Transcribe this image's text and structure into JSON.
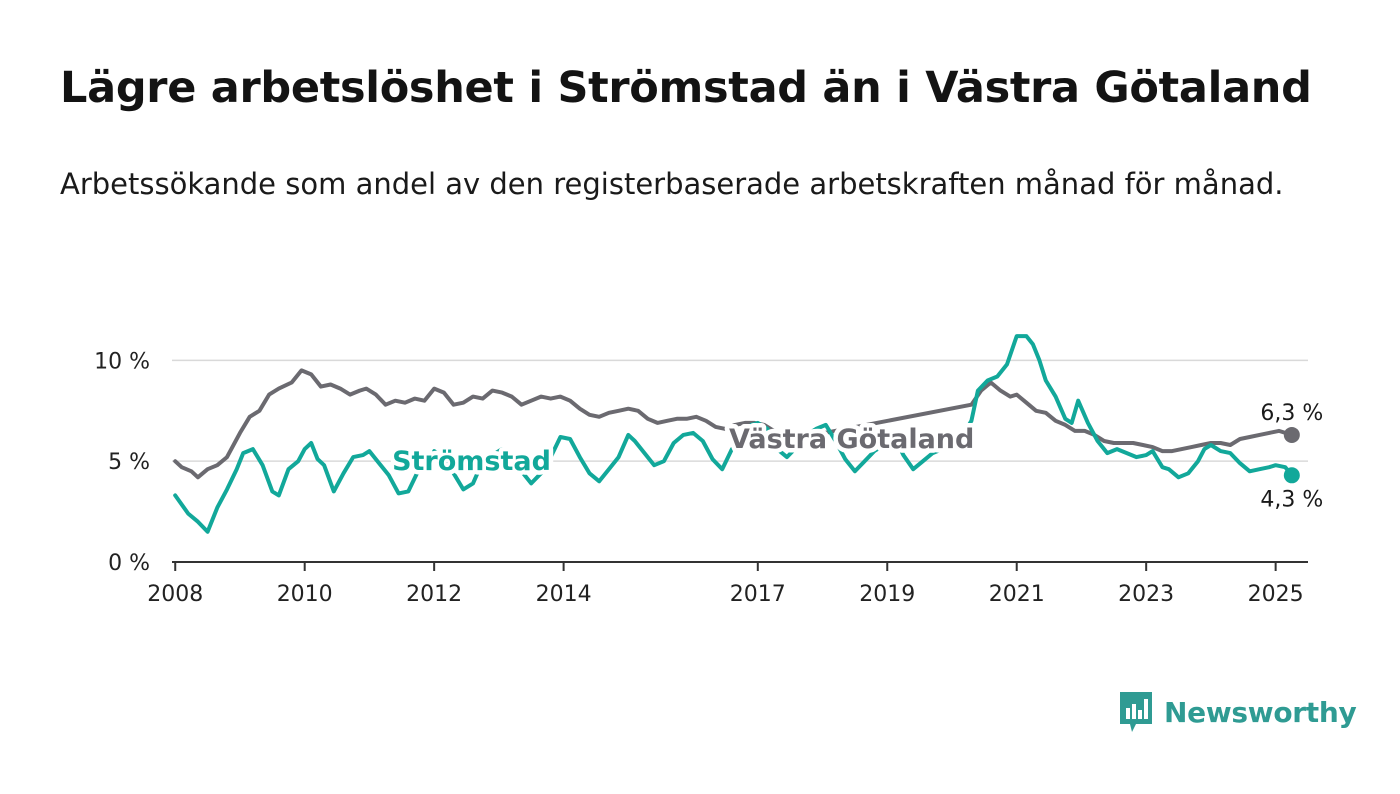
{
  "title": "Lägre arbetslöshet i Strömstad än i Västra Götaland",
  "subtitle": "Arbetssökande som andel av den registerbaserade arbetskraften månad för månad.",
  "brand": {
    "name": "Newsworthy",
    "icon": "newsworthy-logo-icon"
  },
  "colors": {
    "stromstad": "#12a89a",
    "vastra_gotaland": "#6b6a70",
    "grid": "#d9d9d9",
    "axis": "#333333"
  },
  "chart_data": {
    "type": "line",
    "xlabel": "",
    "ylabel": "",
    "xlim": [
      2007.95,
      2025.5
    ],
    "ylim": [
      0,
      12
    ],
    "x_ticks": [
      {
        "value": 2008,
        "label": "2008"
      },
      {
        "value": 2010,
        "label": "2010"
      },
      {
        "value": 2012,
        "label": "2012"
      },
      {
        "value": 2014,
        "label": "2014"
      },
      {
        "value": 2017,
        "label": "2017"
      },
      {
        "value": 2019,
        "label": "2019"
      },
      {
        "value": 2021,
        "label": "2021"
      },
      {
        "value": 2023,
        "label": "2023"
      },
      {
        "value": 2025,
        "label": "2025"
      }
    ],
    "y_ticks": [
      {
        "value": 0,
        "label": "0 %"
      },
      {
        "value": 5,
        "label": "5 %"
      },
      {
        "value": 10,
        "label": "10 %"
      }
    ],
    "grid": true,
    "series": [
      {
        "name": "Västra Götaland",
        "color": "#6b6a70",
        "end_label": "6,3 %",
        "points": [
          [
            2008.0,
            5.0
          ],
          [
            2008.1,
            4.7
          ],
          [
            2008.25,
            4.5
          ],
          [
            2008.35,
            4.2
          ],
          [
            2008.5,
            4.6
          ],
          [
            2008.65,
            4.8
          ],
          [
            2008.8,
            5.2
          ],
          [
            2009.0,
            6.4
          ],
          [
            2009.15,
            7.2
          ],
          [
            2009.3,
            7.5
          ],
          [
            2009.45,
            8.3
          ],
          [
            2009.6,
            8.6
          ],
          [
            2009.8,
            8.9
          ],
          [
            2009.95,
            9.5
          ],
          [
            2010.1,
            9.3
          ],
          [
            2010.25,
            8.7
          ],
          [
            2010.4,
            8.8
          ],
          [
            2010.55,
            8.6
          ],
          [
            2010.7,
            8.3
          ],
          [
            2010.85,
            8.5
          ],
          [
            2010.95,
            8.6
          ],
          [
            2011.1,
            8.3
          ],
          [
            2011.25,
            7.8
          ],
          [
            2011.4,
            8.0
          ],
          [
            2011.55,
            7.9
          ],
          [
            2011.7,
            8.1
          ],
          [
            2011.85,
            8.0
          ],
          [
            2012.0,
            8.6
          ],
          [
            2012.15,
            8.4
          ],
          [
            2012.3,
            7.8
          ],
          [
            2012.45,
            7.9
          ],
          [
            2012.6,
            8.2
          ],
          [
            2012.75,
            8.1
          ],
          [
            2012.9,
            8.5
          ],
          [
            2013.05,
            8.4
          ],
          [
            2013.2,
            8.2
          ],
          [
            2013.35,
            7.8
          ],
          [
            2013.5,
            8.0
          ],
          [
            2013.65,
            8.2
          ],
          [
            2013.8,
            8.1
          ],
          [
            2013.95,
            8.2
          ],
          [
            2014.1,
            8.0
          ],
          [
            2014.25,
            7.6
          ],
          [
            2014.4,
            7.3
          ],
          [
            2014.55,
            7.2
          ],
          [
            2014.7,
            7.4
          ],
          [
            2014.85,
            7.5
          ],
          [
            2015.0,
            7.6
          ],
          [
            2015.15,
            7.5
          ],
          [
            2015.3,
            7.1
          ],
          [
            2015.45,
            6.9
          ],
          [
            2015.6,
            7.0
          ],
          [
            2015.75,
            7.1
          ],
          [
            2015.9,
            7.1
          ],
          [
            2016.05,
            7.2
          ],
          [
            2016.2,
            7.0
          ],
          [
            2016.35,
            6.7
          ],
          [
            2016.5,
            6.6
          ],
          [
            2016.65,
            6.8
          ],
          [
            2016.8,
            6.9
          ],
          [
            2016.95,
            6.9
          ],
          [
            2017.1,
            6.8
          ],
          [
            2017.25,
            6.5
          ],
          [
            2017.4,
            6.3
          ],
          [
            2017.55,
            6.1
          ],
          [
            2020.3,
            7.8
          ],
          [
            2020.45,
            8.5
          ],
          [
            2020.6,
            8.9
          ],
          [
            2020.75,
            8.5
          ],
          [
            2020.9,
            8.2
          ],
          [
            2021.0,
            8.3
          ],
          [
            2021.15,
            7.9
          ],
          [
            2021.3,
            7.5
          ],
          [
            2021.45,
            7.4
          ],
          [
            2021.6,
            7.0
          ],
          [
            2021.75,
            6.8
          ],
          [
            2021.9,
            6.5
          ],
          [
            2022.05,
            6.5
          ],
          [
            2022.2,
            6.3
          ],
          [
            2022.35,
            6.0
          ],
          [
            2022.5,
            5.9
          ],
          [
            2022.65,
            5.9
          ],
          [
            2022.8,
            5.9
          ],
          [
            2022.95,
            5.8
          ],
          [
            2023.1,
            5.7
          ],
          [
            2023.25,
            5.5
          ],
          [
            2023.4,
            5.5
          ],
          [
            2023.55,
            5.6
          ],
          [
            2023.7,
            5.7
          ],
          [
            2023.85,
            5.8
          ],
          [
            2024.0,
            5.9
          ],
          [
            2024.15,
            5.9
          ],
          [
            2024.3,
            5.8
          ],
          [
            2024.45,
            6.1
          ],
          [
            2024.6,
            6.2
          ],
          [
            2024.75,
            6.3
          ],
          [
            2024.9,
            6.4
          ],
          [
            2025.05,
            6.5
          ],
          [
            2025.25,
            6.3
          ]
        ]
      },
      {
        "name": "Strömstad",
        "color": "#12a89a",
        "end_label": "4,3 %",
        "points": [
          [
            2008.0,
            3.3
          ],
          [
            2008.2,
            2.4
          ],
          [
            2008.35,
            2.0
          ],
          [
            2008.5,
            1.5
          ],
          [
            2008.65,
            2.7
          ],
          [
            2008.8,
            3.6
          ],
          [
            2008.95,
            4.6
          ],
          [
            2009.05,
            5.4
          ],
          [
            2009.2,
            5.6
          ],
          [
            2009.35,
            4.8
          ],
          [
            2009.5,
            3.5
          ],
          [
            2009.6,
            3.3
          ],
          [
            2009.75,
            4.6
          ],
          [
            2009.9,
            5.0
          ],
          [
            2010.0,
            5.6
          ],
          [
            2010.1,
            5.9
          ],
          [
            2010.2,
            5.1
          ],
          [
            2010.3,
            4.8
          ],
          [
            2010.45,
            3.5
          ],
          [
            2010.6,
            4.4
          ],
          [
            2010.75,
            5.2
          ],
          [
            2010.9,
            5.3
          ],
          [
            2011.0,
            5.5
          ],
          [
            2011.15,
            4.9
          ],
          [
            2011.3,
            4.3
          ],
          [
            2011.45,
            3.4
          ],
          [
            2011.6,
            3.5
          ],
          [
            2011.75,
            4.5
          ],
          [
            2011.9,
            4.7
          ],
          [
            2012.0,
            5.5
          ],
          [
            2012.15,
            5.1
          ],
          [
            2012.3,
            4.4
          ],
          [
            2012.45,
            3.6
          ],
          [
            2012.6,
            3.9
          ],
          [
            2012.75,
            5.0
          ],
          [
            2012.9,
            5.3
          ],
          [
            2013.05,
            5.6
          ],
          [
            2013.2,
            5.0
          ],
          [
            2013.35,
            4.5
          ],
          [
            2013.5,
            3.9
          ],
          [
            2013.65,
            4.4
          ],
          [
            2013.8,
            5.2
          ],
          [
            2013.95,
            6.2
          ],
          [
            2014.1,
            6.1
          ],
          [
            2014.25,
            5.2
          ],
          [
            2014.4,
            4.4
          ],
          [
            2014.55,
            4.0
          ],
          [
            2014.7,
            4.6
          ],
          [
            2014.85,
            5.2
          ],
          [
            2015.0,
            6.3
          ],
          [
            2015.1,
            6.0
          ],
          [
            2015.25,
            5.4
          ],
          [
            2015.4,
            4.8
          ],
          [
            2015.55,
            5.0
          ],
          [
            2015.7,
            5.9
          ],
          [
            2015.85,
            6.3
          ],
          [
            2016.0,
            6.4
          ],
          [
            2016.15,
            6.0
          ],
          [
            2016.3,
            5.1
          ],
          [
            2016.45,
            4.6
          ],
          [
            2016.6,
            5.6
          ],
          [
            2016.75,
            6.0
          ],
          [
            2016.9,
            6.8
          ],
          [
            2017.0,
            6.9
          ],
          [
            2017.15,
            6.6
          ],
          [
            2017.3,
            5.6
          ],
          [
            2017.45,
            5.2
          ],
          [
            2017.6,
            5.7
          ],
          [
            2017.75,
            6.3
          ],
          [
            2017.9,
            6.6
          ],
          [
            2018.05,
            6.8
          ],
          [
            2018.2,
            6.0
          ],
          [
            2018.35,
            5.1
          ],
          [
            2018.5,
            4.5
          ],
          [
            2018.65,
            5.0
          ],
          [
            2018.8,
            5.5
          ],
          [
            2018.95,
            5.8
          ],
          [
            2019.1,
            6.3
          ],
          [
            2019.25,
            5.3
          ],
          [
            2019.4,
            4.6
          ],
          [
            2019.55,
            5.0
          ],
          [
            2019.7,
            5.4
          ],
          [
            2019.85,
            5.6
          ],
          [
            2020.0,
            5.9
          ],
          [
            2020.15,
            6.2
          ],
          [
            2020.3,
            7.0
          ],
          [
            2020.4,
            8.5
          ],
          [
            2020.55,
            9.0
          ],
          [
            2020.7,
            9.2
          ],
          [
            2020.85,
            9.8
          ],
          [
            2021.0,
            11.2
          ],
          [
            2021.15,
            11.2
          ],
          [
            2021.25,
            10.8
          ],
          [
            2021.35,
            10.0
          ],
          [
            2021.45,
            9.0
          ],
          [
            2021.6,
            8.2
          ],
          [
            2021.75,
            7.1
          ],
          [
            2021.85,
            6.9
          ],
          [
            2021.95,
            8.0
          ],
          [
            2022.1,
            6.9
          ],
          [
            2022.25,
            6.0
          ],
          [
            2022.4,
            5.4
          ],
          [
            2022.55,
            5.6
          ],
          [
            2022.7,
            5.4
          ],
          [
            2022.85,
            5.2
          ],
          [
            2023.0,
            5.3
          ],
          [
            2023.1,
            5.5
          ],
          [
            2023.25,
            4.7
          ],
          [
            2023.35,
            4.6
          ],
          [
            2023.5,
            4.2
          ],
          [
            2023.65,
            4.4
          ],
          [
            2023.8,
            5.0
          ],
          [
            2023.9,
            5.6
          ],
          [
            2024.0,
            5.8
          ],
          [
            2024.15,
            5.5
          ],
          [
            2024.3,
            5.4
          ],
          [
            2024.45,
            4.9
          ],
          [
            2024.6,
            4.5
          ],
          [
            2024.75,
            4.6
          ],
          [
            2024.9,
            4.7
          ],
          [
            2025.0,
            4.8
          ],
          [
            2025.15,
            4.7
          ],
          [
            2025.25,
            4.3
          ]
        ]
      }
    ],
    "series_labels": [
      {
        "series": "Strömstad",
        "text": "Strömstad",
        "x": 2011.35,
        "y": 5.0,
        "anchor": "start"
      },
      {
        "series": "Västra Götaland",
        "text": "Västra Götaland",
        "x": 2018.45,
        "y": 6.1,
        "anchor": "middle"
      }
    ]
  }
}
